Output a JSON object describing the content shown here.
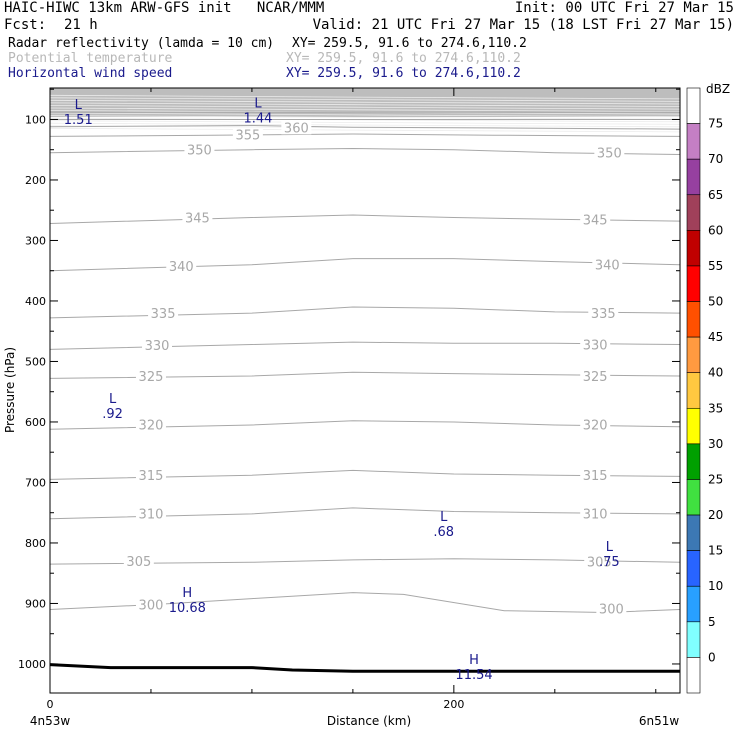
{
  "header": {
    "line1_left": "HAIC-HIWC 13km ARW-GFS init   NCAR/MMM",
    "line1_right": "Init: 00 UTC Fri 27 Mar 15",
    "fcst_label": "Fcst:",
    "fcst_value": "21 h",
    "valid": "Valid: 21 UTC Fri 27 Mar 15 (18 LST Fri 27 Mar 15)"
  },
  "fields": [
    {
      "name": "Radar reflectivity (lamda = 10 cm)",
      "xy": "XY= 259.5, 91.6 to 274.6,110.2",
      "color": "#000000"
    },
    {
      "name": "Potential temperature",
      "xy": "XY= 259.5, 91.6 to 274.6,110.2",
      "color": "#b8b8b8"
    },
    {
      "name": "Horizontal wind speed",
      "xy": "XY= 259.5, 91.6 to 274.6,110.2",
      "color": "#1a1a8c"
    }
  ],
  "chart_data": {
    "type": "line",
    "subtype": "vertical cross-section",
    "ylabel": "Pressure (hPa)",
    "xlabel": "Distance (km)",
    "x_endpoints": [
      "4n53w",
      "6n51w"
    ],
    "xlim": [
      0,
      312
    ],
    "ylim": [
      1048,
      48
    ],
    "y_ticks": [
      100,
      200,
      300,
      400,
      500,
      600,
      700,
      800,
      900,
      1000
    ],
    "x_ticks": [
      0,
      200
    ],
    "x_minor_step": 50,
    "y_minor_step": 50,
    "theta_contours": [
      {
        "label": "300",
        "x": [
          0,
          50,
          100,
          150,
          175,
          225,
          275,
          312
        ],
        "p": [
          910,
          902,
          892,
          882,
          885,
          912,
          915,
          910
        ],
        "label_at": [
          [
            50,
            902
          ],
          [
            278,
            908
          ]
        ]
      },
      {
        "label": "305",
        "x": [
          0,
          100,
          150,
          200,
          250,
          312
        ],
        "p": [
          835,
          832,
          828,
          826,
          828,
          832
        ],
        "label_at": [
          [
            44,
            830
          ],
          [
            272,
            831
          ]
        ]
      },
      {
        "label": "310",
        "x": [
          0,
          100,
          150,
          200,
          250,
          312
        ],
        "p": [
          760,
          752,
          742,
          748,
          750,
          752
        ],
        "label_at": [
          [
            50,
            751
          ],
          [
            270,
            751
          ]
        ]
      },
      {
        "label": "315",
        "x": [
          0,
          100,
          150,
          200,
          250,
          312
        ],
        "p": [
          695,
          688,
          680,
          686,
          688,
          690
        ],
        "label_at": [
          [
            50,
            688
          ],
          [
            270,
            688
          ]
        ]
      },
      {
        "label": "320",
        "x": [
          0,
          100,
          150,
          200,
          250,
          312
        ],
        "p": [
          612,
          605,
          598,
          600,
          605,
          608
        ],
        "label_at": [
          [
            50,
            604
          ],
          [
            270,
            604
          ]
        ]
      },
      {
        "label": "325",
        "x": [
          0,
          100,
          150,
          200,
          250,
          312
        ],
        "p": [
          528,
          524,
          518,
          520,
          522,
          524
        ],
        "label_at": [
          [
            50,
            524
          ],
          [
            270,
            524
          ]
        ]
      },
      {
        "label": "330",
        "x": [
          0,
          100,
          150,
          200,
          250,
          312
        ],
        "p": [
          480,
          472,
          468,
          470,
          470,
          472
        ],
        "label_at": [
          [
            53,
            473
          ],
          [
            270,
            472
          ]
        ]
      },
      {
        "label": "335",
        "x": [
          0,
          100,
          150,
          200,
          250,
          312
        ],
        "p": [
          428,
          420,
          410,
          412,
          418,
          420
        ],
        "label_at": [
          [
            56,
            420
          ],
          [
            274,
            420
          ]
        ]
      },
      {
        "label": "340",
        "x": [
          0,
          100,
          150,
          200,
          250,
          312
        ],
        "p": [
          350,
          340,
          330,
          330,
          335,
          340
        ],
        "label_at": [
          [
            65,
            342
          ],
          [
            276,
            340
          ]
        ]
      },
      {
        "label": "345",
        "x": [
          0,
          100,
          150,
          200,
          250,
          312
        ],
        "p": [
          272,
          262,
          258,
          262,
          265,
          268
        ],
        "label_at": [
          [
            73,
            262
          ],
          [
            270,
            265
          ]
        ]
      },
      {
        "label": "350",
        "x": [
          0,
          100,
          150,
          200,
          250,
          312
        ],
        "p": [
          155,
          150,
          148,
          150,
          155,
          158
        ],
        "label_at": [
          [
            74,
            150
          ],
          [
            277,
            155
          ]
        ]
      },
      {
        "label": "355",
        "x": [
          0,
          80,
          150,
          220,
          312
        ],
        "p": [
          128,
          126,
          124,
          126,
          128
        ],
        "label_at": [
          [
            98,
            125
          ]
        ]
      },
      {
        "label": "360",
        "x": [
          0,
          100,
          150,
          220,
          312
        ],
        "p": [
          112,
          110,
          113,
          114,
          116
        ],
        "label_at": [
          [
            122,
            113
          ]
        ]
      },
      {
        "label": "",
        "x": [
          0,
          312
        ],
        "p": [
          100,
          100
        ]
      },
      {
        "label": "",
        "x": [
          0,
          312
        ],
        "p": [
          88,
          88
        ]
      }
    ],
    "wind_extrema": [
      {
        "type": "L",
        "value": "1.51",
        "x": 14,
        "p": 83
      },
      {
        "type": "L",
        "value": "1.44",
        "x": 103,
        "p": 80
      },
      {
        "type": "L",
        "value": ".92",
        "x": 31,
        "p": 569
      },
      {
        "type": "L",
        "value": ".68",
        "x": 195,
        "p": 764
      },
      {
        "type": "L",
        "value": ".75",
        "x": 277,
        "p": 813
      },
      {
        "type": "H",
        "value": "10.68",
        "x": 68,
        "p": 889
      },
      {
        "type": "H",
        "value": "11.54",
        "x": 210,
        "p": 1000
      }
    ],
    "terrain": {
      "x": [
        0,
        30,
        100,
        120,
        150,
        200,
        250,
        312
      ],
      "p": [
        1001,
        1006,
        1006,
        1010,
        1012,
        1012,
        1012,
        1012
      ]
    },
    "reflectivity_shaded_top_hpa": 96,
    "colorbar": {
      "unit": "dBZ",
      "levels": [
        "75",
        "70",
        "65",
        "60",
        "55",
        "50",
        "45",
        "40",
        "35",
        "30",
        "25",
        "20",
        "15",
        "10",
        "5",
        "0"
      ],
      "colors": [
        "#ffffff",
        "#c47fc4",
        "#9640a0",
        "#a0405a",
        "#c00000",
        "#ff0000",
        "#ff5000",
        "#ff9a40",
        "#ffc840",
        "#ffff00",
        "#00a000",
        "#40e040",
        "#3c78b4",
        "#2864ff",
        "#28a0ff",
        "#80ffff",
        "#ffffff"
      ]
    }
  }
}
